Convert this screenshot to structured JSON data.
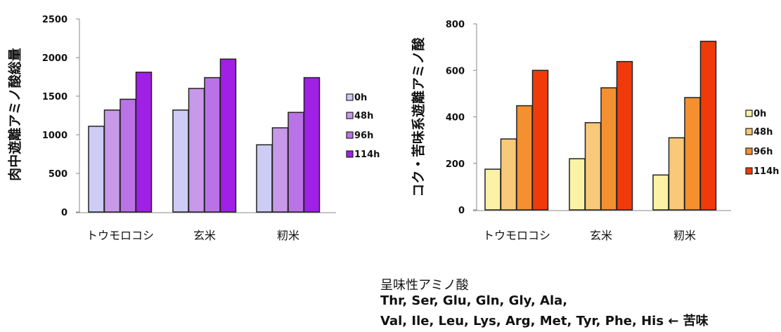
{
  "chart_data": [
    {
      "type": "bar",
      "ylabel": "肉中遊離アミノ酸総量",
      "categories": [
        "トウモロコシ",
        "玄米",
        "籾米"
      ],
      "ylim": [
        0,
        2500
      ],
      "yticks": [
        "0",
        "500",
        "1000",
        "1500",
        "2000",
        "2500"
      ],
      "grid": false,
      "legend_position": "right",
      "series": [
        {
          "name": "0h",
          "color": "#ccccf5",
          "values": [
            1110,
            1320,
            870
          ]
        },
        {
          "name": "48h",
          "color": "#c799e8",
          "values": [
            1320,
            1600,
            1090
          ]
        },
        {
          "name": "96h",
          "color": "#b973e6",
          "values": [
            1460,
            1740,
            1290
          ]
        },
        {
          "name": "114h",
          "color": "#a020e6",
          "values": [
            1810,
            1980,
            1740
          ]
        }
      ]
    },
    {
      "type": "bar",
      "ylabel": "コク・苦味系遊離アミノ酸",
      "categories": [
        "トウモロコシ",
        "玄米",
        "籾米"
      ],
      "ylim": [
        0,
        800
      ],
      "yticks": [
        "0",
        "200",
        "400",
        "600",
        "800"
      ],
      "grid": false,
      "legend_position": "right",
      "series": [
        {
          "name": "0h",
          "color": "#fbf2a6",
          "values": [
            175,
            220,
            150
          ]
        },
        {
          "name": "48h",
          "color": "#f8c97a",
          "values": [
            305,
            375,
            310
          ]
        },
        {
          "name": "96h",
          "color": "#f49030",
          "values": [
            448,
            525,
            483
          ]
        },
        {
          "name": "114h",
          "color": "#f03a0a",
          "values": [
            600,
            638,
            725
          ]
        }
      ]
    }
  ],
  "note": {
    "title": "呈味性アミノ酸",
    "line1": "Thr, Ser, Glu, Gln, Gly, Ala,",
    "line2": "Val, Ile, Leu, Lys, Arg, Met, Tyr, Phe, His ← 苦味"
  }
}
